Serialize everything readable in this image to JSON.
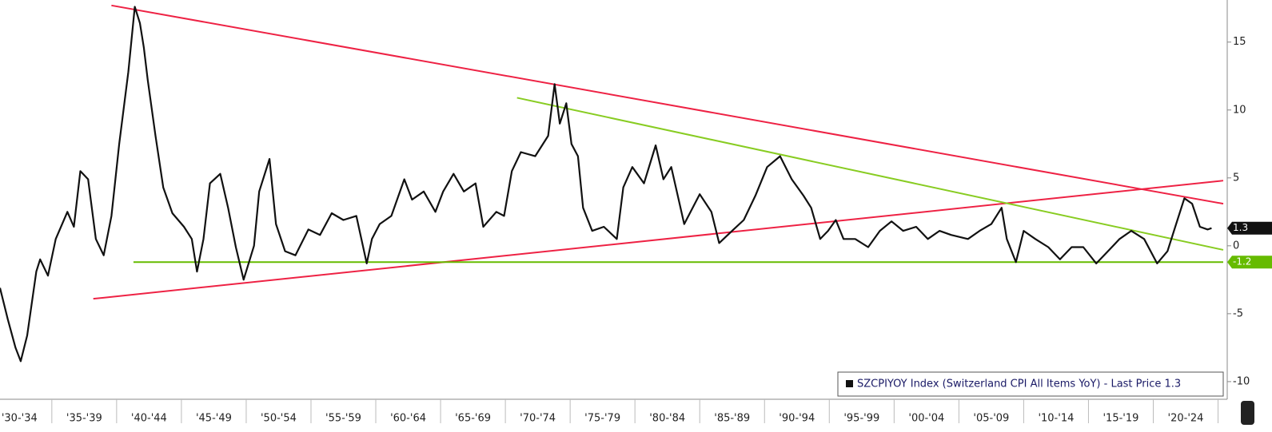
{
  "chart_data": {
    "type": "line",
    "series": [
      {
        "name": "SZCPIYOY Index (Switzerland CPI All Items YoY) - Last Price 1.3",
        "color": "#111111",
        "x": [
          1931.0,
          1931.6,
          1932.2,
          1932.6,
          1933.1,
          1933.8,
          1934.1,
          1934.7,
          1935.3,
          1936.2,
          1936.7,
          1937.2,
          1937.8,
          1938.4,
          1939.0,
          1939.6,
          1940.2,
          1940.9,
          1941.4,
          1941.8,
          1942.1,
          1942.4,
          1943.0,
          1943.6,
          1944.3,
          1945.2,
          1945.8,
          1946.2,
          1946.7,
          1947.2,
          1948.0,
          1948.6,
          1949.2,
          1949.8,
          1950.6,
          1951.0,
          1951.8,
          1952.3,
          1953.0,
          1953.8,
          1954.8,
          1955.7,
          1956.6,
          1957.5,
          1958.5,
          1959.3,
          1959.7,
          1960.3,
          1961.2,
          1962.2,
          1962.8,
          1963.7,
          1964.6,
          1965.2,
          1966.0,
          1966.8,
          1967.7,
          1968.3,
          1969.3,
          1969.9,
          1970.5,
          1971.2,
          1972.3,
          1973.3,
          1973.8,
          1974.2,
          1974.7,
          1975.1,
          1975.6,
          1976.0,
          1976.7,
          1977.6,
          1978.6,
          1979.1,
          1979.8,
          1980.7,
          1981.6,
          1982.2,
          1982.8,
          1983.8,
          1985.0,
          1985.9,
          1986.5,
          1987.5,
          1988.4,
          1989.3,
          1990.2,
          1991.2,
          1992.1,
          1993.0,
          1993.6,
          1994.3,
          1994.9,
          1995.5,
          1996.1,
          1997.0,
          1998.0,
          1998.9,
          1999.8,
          2000.7,
          2001.7,
          2002.6,
          2003.5,
          2004.4,
          2005.7,
          2006.6,
          2007.5,
          2008.3,
          2008.7,
          2009.4,
          2010.0,
          2010.9,
          2011.9,
          2012.8,
          2013.7,
          2014.6,
          2015.6,
          2016.5,
          2017.4,
          2018.3,
          2019.3,
          2020.3,
          2021.1,
          2021.7,
          2022.4,
          2023.0,
          2023.6,
          2024.2,
          2024.5
        ],
        "values": [
          -3.1,
          -5.4,
          -7.5,
          -8.5,
          -6.6,
          -1.9,
          -1.0,
          -2.2,
          0.5,
          2.5,
          1.4,
          5.5,
          4.9,
          0.5,
          -0.7,
          2.2,
          7.5,
          12.8,
          17.6,
          16.4,
          14.6,
          12.2,
          8.1,
          4.3,
          2.4,
          1.4,
          0.5,
          -1.9,
          0.5,
          4.6,
          5.3,
          2.8,
          -0.1,
          -2.5,
          0.0,
          4.0,
          6.4,
          1.6,
          -0.4,
          -0.7,
          1.2,
          0.8,
          2.4,
          1.9,
          2.2,
          -1.3,
          0.5,
          1.6,
          2.2,
          4.9,
          3.4,
          4.0,
          2.5,
          4.0,
          5.3,
          4.0,
          4.6,
          1.4,
          2.5,
          2.2,
          5.5,
          6.9,
          6.6,
          8.1,
          11.9,
          9.0,
          10.5,
          7.5,
          6.6,
          2.8,
          1.1,
          1.4,
          0.5,
          4.3,
          5.8,
          4.6,
          7.4,
          4.9,
          5.8,
          1.6,
          3.8,
          2.5,
          0.2,
          1.1,
          1.9,
          3.7,
          5.8,
          6.6,
          4.9,
          3.7,
          2.8,
          0.5,
          1.1,
          1.9,
          0.5,
          0.5,
          -0.1,
          1.1,
          1.8,
          1.1,
          1.4,
          0.5,
          1.1,
          0.8,
          0.5,
          1.1,
          1.6,
          2.8,
          0.5,
          -1.2,
          1.1,
          0.5,
          -0.1,
          -1.0,
          -0.1,
          -0.1,
          -1.3,
          -0.4,
          0.5,
          1.1,
          0.5,
          -1.3,
          -0.4,
          1.4,
          3.5,
          3.1,
          1.4,
          1.2,
          1.3
        ]
      }
    ],
    "trendlines": [
      {
        "color": "#ee2244",
        "x": [
          1939.6,
          2025.4
        ],
        "values": [
          17.7,
          3.1
        ]
      },
      {
        "color": "#ee2244",
        "x": [
          1938.2,
          2025.4
        ],
        "values": [
          -3.9,
          4.8
        ]
      },
      {
        "color": "#88cc22",
        "x": [
          1970.9,
          2025.4
        ],
        "values": [
          10.9,
          -0.3
        ]
      },
      {
        "color": "#66bb00",
        "x": [
          1941.3,
          2025.4
        ],
        "values": [
          -1.2,
          -1.2
        ]
      }
    ],
    "tags": [
      {
        "value": 1.3,
        "color": "#111111"
      },
      {
        "value": -1.2,
        "color": "#66bb00"
      }
    ],
    "xlim": [
      1931,
      2025.4
    ],
    "ylim": [
      -11.3,
      18.1
    ],
    "xticks": [
      {
        "value": 1932.5,
        "label": "'30-'34"
      },
      {
        "value": 1937.5,
        "label": "'35-'39"
      },
      {
        "value": 1942.5,
        "label": "'40-'44"
      },
      {
        "value": 1947.5,
        "label": "'45-'49"
      },
      {
        "value": 1952.5,
        "label": "'50-'54"
      },
      {
        "value": 1957.5,
        "label": "'55-'59"
      },
      {
        "value": 1962.5,
        "label": "'60-'64"
      },
      {
        "value": 1967.5,
        "label": "'65-'69"
      },
      {
        "value": 1972.5,
        "label": "'70-'74"
      },
      {
        "value": 1977.5,
        "label": "'75-'79"
      },
      {
        "value": 1982.5,
        "label": "'80-'84"
      },
      {
        "value": 1987.5,
        "label": "'85-'89"
      },
      {
        "value": 1992.5,
        "label": "'90-'94"
      },
      {
        "value": 1997.5,
        "label": "'95-'99"
      },
      {
        "value": 2002.5,
        "label": "'00-'04"
      },
      {
        "value": 2007.5,
        "label": "'05-'09"
      },
      {
        "value": 2012.5,
        "label": "'10-'14"
      },
      {
        "value": 2017.5,
        "label": "'15-'19"
      },
      {
        "value": 2022.5,
        "label": "'20-'24"
      }
    ],
    "yticks": [
      -10,
      -5,
      0,
      5,
      10,
      15
    ]
  }
}
